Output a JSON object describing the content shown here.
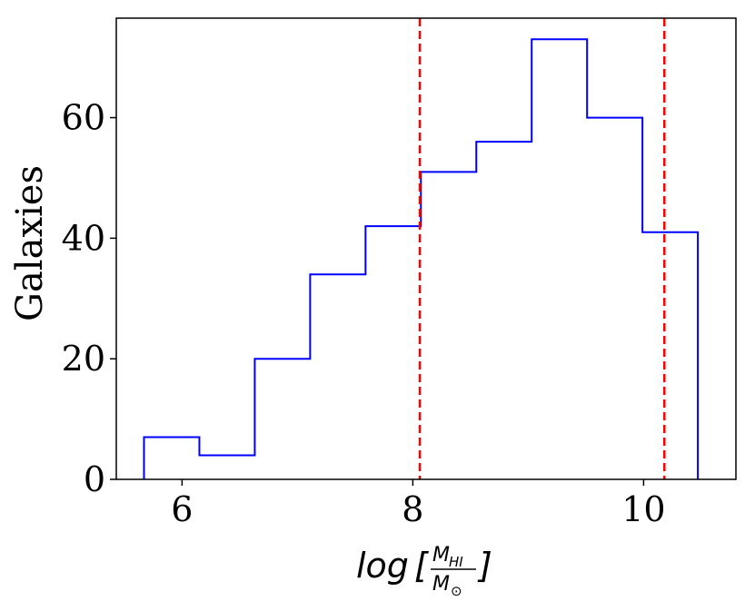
{
  "chart_data": {
    "type": "histogram",
    "xlabel": "log[M_HI / M_⊙]",
    "xlabel_parts": {
      "prefix": "log",
      "open_bracket": "[",
      "numerator_main": "M",
      "numerator_sub": "HI",
      "denominator_main": "M",
      "denominator_sub": "⊙",
      "close_bracket": "]"
    },
    "ylabel": "Galaxies",
    "xlim": [
      5.43,
      10.8
    ],
    "ylim": [
      0,
      76.5
    ],
    "xticks": [
      6,
      8,
      10
    ],
    "xtick_labels": [
      "6",
      "8",
      "10"
    ],
    "yticks": [
      0,
      20,
      40,
      60
    ],
    "ytick_labels": [
      "0",
      "20",
      "40",
      "60"
    ],
    "bin_edges": [
      5.67,
      6.15,
      6.63,
      7.11,
      7.59,
      8.07,
      8.55,
      9.03,
      9.51,
      9.99,
      10.47
    ],
    "counts": [
      7,
      4,
      20,
      34,
      42,
      51,
      56,
      73,
      60,
      41
    ],
    "histtype": "step",
    "series_color": "#0000ff",
    "vlines": [
      {
        "x": 8.06,
        "color": "#ff0000",
        "style": "dashed"
      },
      {
        "x": 10.18,
        "color": "#ff0000",
        "style": "dashed"
      }
    ],
    "grid": false,
    "legend": "none"
  }
}
